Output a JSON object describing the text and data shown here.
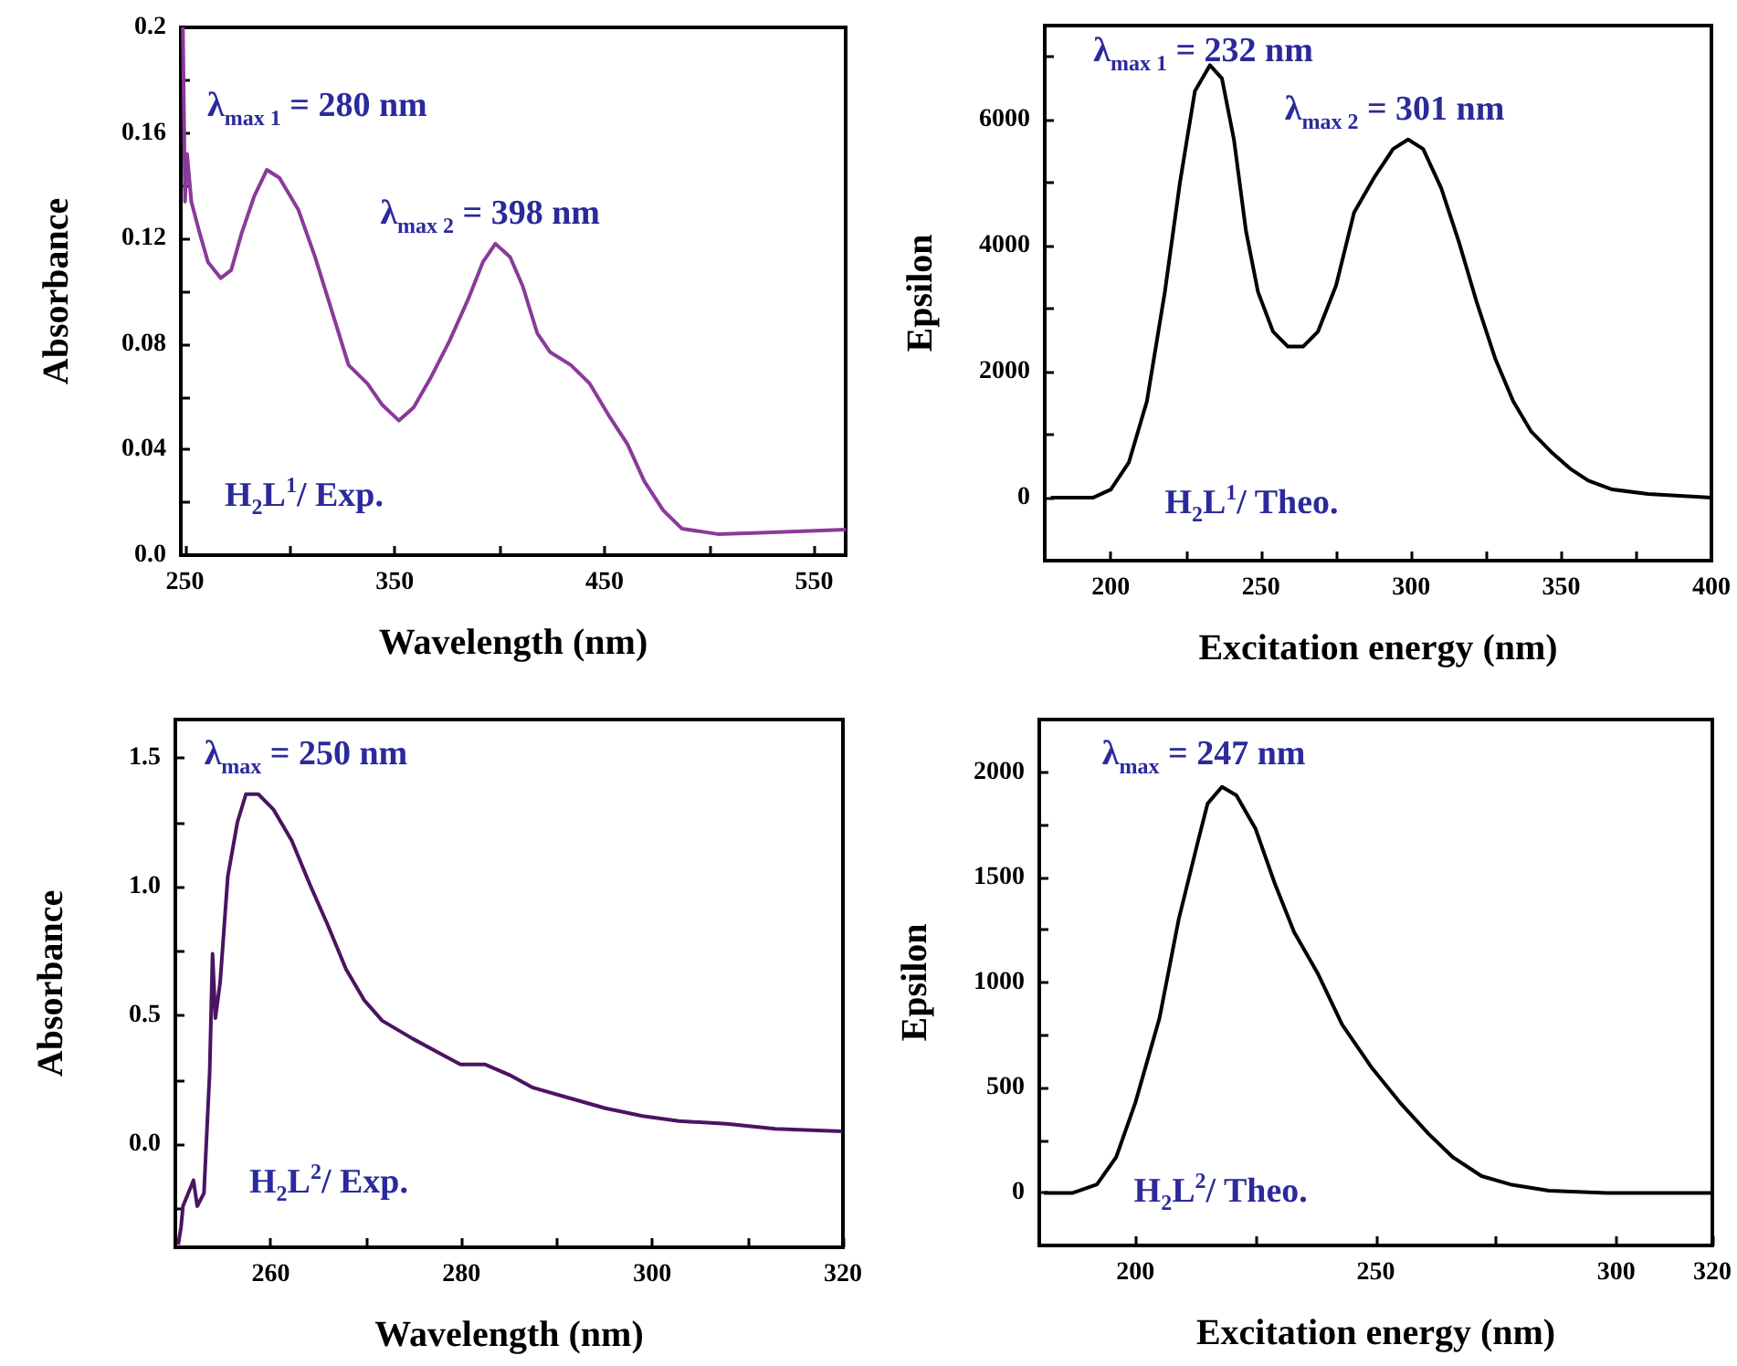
{
  "chart_data": [
    {
      "type": "line",
      "xlabel": "Wavelength (nm)",
      "ylabel": "Absorbance",
      "color": "#8a3a9a",
      "x": [
        249,
        250,
        251,
        253,
        257,
        261,
        267,
        272,
        277,
        283,
        289,
        295,
        304,
        312,
        321,
        328,
        337,
        344,
        352,
        359,
        367,
        376,
        385,
        392,
        398,
        405,
        411,
        418,
        424,
        434,
        443,
        452,
        461,
        469,
        478,
        487,
        504,
        524,
        565
      ],
      "values": [
        0.2,
        0.134,
        0.152,
        0.134,
        0.122,
        0.111,
        0.105,
        0.108,
        0.122,
        0.136,
        0.146,
        0.143,
        0.131,
        0.113,
        0.09,
        0.072,
        0.065,
        0.057,
        0.051,
        0.056,
        0.067,
        0.081,
        0.097,
        0.111,
        0.118,
        0.113,
        0.102,
        0.084,
        0.077,
        0.072,
        0.065,
        0.053,
        0.042,
        0.028,
        0.017,
        0.01,
        0.008,
        0.0085,
        0.0097
      ],
      "xlim": [
        248,
        565
      ],
      "ylim": [
        0,
        0.2
      ],
      "xticks": [
        250,
        {
          "value": 300,
          "label": null
        },
        350,
        {
          "value": 400,
          "label": null
        },
        450,
        {
          "value": 500,
          "label": null
        },
        550
      ],
      "yticks": [
        {
          "value": 0,
          "label": "0.0"
        },
        {
          "value": 0.02,
          "label": null
        },
        0.04,
        {
          "value": 0.06,
          "label": null
        },
        0.08,
        {
          "value": 0.1,
          "label": null
        },
        0.12,
        {
          "value": 0.14,
          "label": null
        },
        0.16,
        {
          "value": 0.18,
          "label": null
        },
        0.2
      ],
      "annotations": [
        "λ$_{max 1}$ = 280 nm",
        "λ$_{max 2}$ = 398 nm",
        "H$_{2}$L$^{1}$/ Exp."
      ]
    },
    {
      "type": "line",
      "xlabel": "Excitation energy (nm)",
      "ylabel": "Epsilon",
      "color": "#000000",
      "x": [
        180,
        194,
        200,
        206,
        212,
        218,
        223,
        228,
        233,
        237,
        241,
        245,
        249,
        254,
        259,
        264,
        269,
        275,
        281,
        288,
        294,
        299,
        304,
        310,
        316,
        322,
        328,
        334,
        340,
        347,
        353,
        359,
        367,
        379,
        400
      ],
      "values": [
        0,
        0,
        130,
        560,
        1530,
        3270,
        5000,
        6460,
        6870,
        6660,
        5690,
        4240,
        3270,
        2640,
        2400,
        2400,
        2640,
        3370,
        4530,
        5110,
        5540,
        5690,
        5540,
        4920,
        4050,
        3080,
        2210,
        1530,
        1050,
        710,
        460,
        270,
        130,
        60,
        0
      ],
      "xlim": [
        178,
        400
      ],
      "ylim": [
        -1000,
        7500
      ],
      "xticks": [
        200,
        {
          "value": 225,
          "label": null
        },
        250,
        {
          "value": 275,
          "label": null
        },
        300,
        {
          "value": 325,
          "label": null
        },
        350,
        {
          "value": 375,
          "label": null
        },
        400
      ],
      "yticks": [
        {
          "value": -1000,
          "label": null
        },
        0,
        {
          "value": 1000,
          "label": null
        },
        2000,
        {
          "value": 3000,
          "label": null
        },
        4000,
        {
          "value": 5000,
          "label": null
        },
        6000,
        {
          "value": 7000,
          "label": null
        }
      ],
      "annotations": [
        "λ$_{max 1}$ = 232 nm",
        "λ$_{max 2}$ = 301 nm",
        "H$_{2}$L$^{1}$/ Theo."
      ]
    },
    {
      "type": "line",
      "xlabel": "Wavelength (nm)",
      "ylabel": "Absorbance",
      "color": "#4b1462",
      "x": [
        250.3,
        250.6,
        250.8,
        251.9,
        252.3,
        253,
        253.6,
        253.9,
        254.2,
        254.7,
        255.5,
        256.5,
        257.4,
        258.7,
        260.3,
        262.2,
        264.1,
        266,
        267.9,
        269.8,
        271.7,
        274.9,
        277.4,
        279.9,
        282.5,
        285,
        287.5,
        291.3,
        295.1,
        299,
        302.8,
        307.8,
        312.9,
        319.9
      ],
      "values": [
        -0.39,
        -0.32,
        -0.24,
        -0.14,
        -0.24,
        -0.19,
        0.28,
        0.74,
        0.49,
        0.63,
        1.04,
        1.25,
        1.36,
        1.36,
        1.3,
        1.18,
        1.01,
        0.85,
        0.68,
        0.56,
        0.48,
        0.41,
        0.36,
        0.31,
        0.31,
        0.27,
        0.22,
        0.18,
        0.14,
        0.11,
        0.09,
        0.08,
        0.06,
        0.05
      ],
      "xlim": [
        250,
        320
      ],
      "ylim": [
        -0.4,
        1.65
      ],
      "xticks": [
        260,
        {
          "value": 270,
          "label": null
        },
        280,
        {
          "value": 290,
          "label": null
        },
        300,
        {
          "value": 310,
          "label": null
        },
        320
      ],
      "yticks": [
        {
          "value": -0.25,
          "label": null
        },
        {
          "value": 0,
          "label": "0.0"
        },
        {
          "value": 0.25,
          "label": null
        },
        0.5,
        {
          "value": 0.75,
          "label": null
        },
        {
          "value": 1,
          "label": "1.0"
        },
        {
          "value": 1.25,
          "label": null
        },
        1.5
      ],
      "annotations": [
        "λ$_{max}$ = 250 nm",
        "H$_{2}$L$^{2}$/ Exp."
      ]
    },
    {
      "type": "line",
      "xlabel": "Excitation energy (nm)",
      "ylabel": "Epsilon",
      "color": "#000000",
      "x": [
        181,
        187,
        192,
        196,
        200,
        205,
        209,
        213,
        215,
        218,
        221,
        225,
        229,
        233,
        238,
        243,
        249,
        255,
        261,
        266,
        272,
        278,
        286,
        298,
        320
      ],
      "values": [
        0,
        0,
        40,
        170,
        430,
        830,
        1300,
        1670,
        1850,
        1930,
        1890,
        1730,
        1470,
        1240,
        1040,
        800,
        600,
        430,
        280,
        170,
        80,
        40,
        10,
        0,
        0
      ],
      "xlim": [
        180,
        320
      ],
      "ylim": [
        -250,
        2250
      ],
      "xticks": [
        200,
        {
          "value": 225,
          "label": null
        },
        250,
        {
          "value": 275,
          "label": null
        },
        300,
        320
      ],
      "yticks": [
        0,
        {
          "value": 250,
          "label": null
        },
        500,
        {
          "value": 750,
          "label": null
        },
        1000,
        {
          "value": 1250,
          "label": null
        },
        1500,
        {
          "value": 1750,
          "label": null
        },
        2000
      ],
      "annotations": [
        "λ$_{max}$ = 247 nm",
        "H$_{2}$L$^{2}$/ Theo."
      ]
    }
  ]
}
